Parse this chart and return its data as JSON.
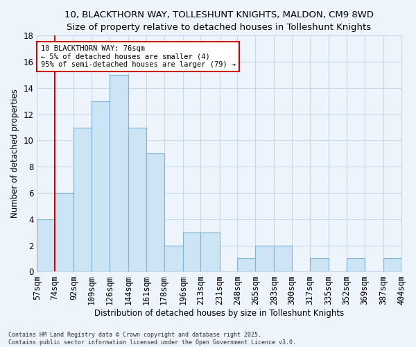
{
  "title": "10, BLACKTHORN WAY, TOLLESHUNT KNIGHTS, MALDON, CM9 8WD",
  "subtitle": "Size of property relative to detached houses in Tolleshunt Knights",
  "xlabel": "Distribution of detached houses by size in Tolleshunt Knights",
  "ylabel": "Number of detached properties",
  "bar_edges": [
    57,
    74,
    92,
    109,
    126,
    144,
    161,
    178,
    196,
    213,
    231,
    248,
    265,
    283,
    300,
    317,
    335,
    352,
    369,
    387,
    404
  ],
  "bar_heights": [
    4,
    6,
    11,
    13,
    15,
    11,
    9,
    2,
    3,
    3,
    0,
    1,
    2,
    2,
    0,
    1,
    0,
    1,
    0,
    1
  ],
  "bar_color": "#cce4f4",
  "bar_edge_color": "#7fb3d3",
  "vline_x": 74,
  "vline_color": "#cc0000",
  "ylim": [
    0,
    18
  ],
  "yticks": [
    0,
    2,
    4,
    6,
    8,
    10,
    12,
    14,
    16,
    18
  ],
  "tick_labels": [
    "57sqm",
    "74sqm",
    "92sqm",
    "109sqm",
    "126sqm",
    "144sqm",
    "161sqm",
    "178sqm",
    "196sqm",
    "213sqm",
    "231sqm",
    "248sqm",
    "265sqm",
    "283sqm",
    "300sqm",
    "317sqm",
    "335sqm",
    "352sqm",
    "369sqm",
    "387sqm",
    "404sqm"
  ],
  "annotation_line1": "10 BLACKTHORN WAY: 76sqm",
  "annotation_line2": "← 5% of detached houses are smaller (4)",
  "annotation_line3": "95% of semi-detached houses are larger (79) →",
  "ann_box_color": "#cc0000",
  "bg_color": "#eef4fb",
  "grid_color": "#c5d8ee",
  "footer_line1": "Contains HM Land Registry data © Crown copyright and database right 2025.",
  "footer_line2": "Contains public sector information licensed under the Open Government Licence v3.0."
}
